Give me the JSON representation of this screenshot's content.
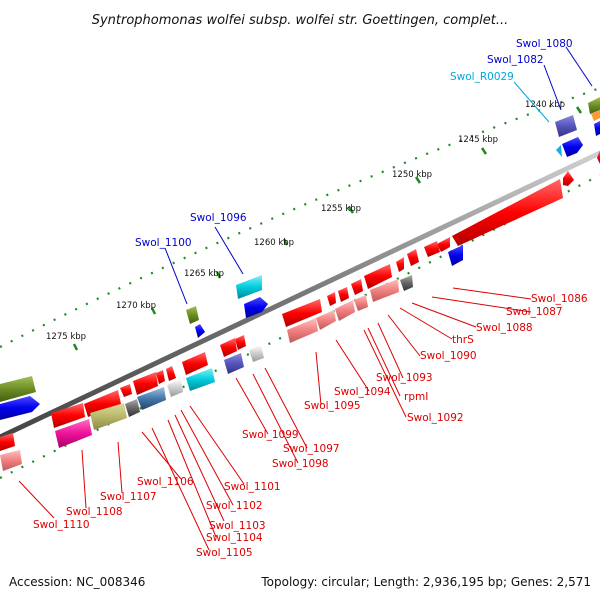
{
  "title": "Syntrophomonas wolfei subsp. wolfei str. Goettingen, complet...",
  "footer": {
    "accession": "Accession: NC_008346",
    "summary": "Topology: circular; Length: 2,936,195 bp; Genes: 2,571"
  },
  "ticks": [
    "1240 kbp",
    "1245 kbp",
    "1250 kbp",
    "1255 kbp",
    "1260 kbp",
    "1265 kbp",
    "1270 kbp",
    "1275 kbp"
  ],
  "colors": {
    "backbone": "#7a7a7a",
    "forward_red": "#ff0000",
    "pink": "#f08080",
    "forward_line": "#0000cc",
    "reverse_line": "#dd0000",
    "rna_line": "#00aadd",
    "dot": "#228822"
  },
  "labels_top": [
    {
      "text": "Swol_1080",
      "color": "#0000cc"
    },
    {
      "text": "Swol_1082",
      "color": "#0000cc"
    },
    {
      "text": "Swol_R0029",
      "color": "#00aadd"
    },
    {
      "text": "Swol_1096",
      "color": "#0000cc"
    },
    {
      "text": "Swol_1100",
      "color": "#0000cc"
    }
  ],
  "labels_bottom": [
    {
      "text": "Swol_1086"
    },
    {
      "text": "Swol_1087"
    },
    {
      "text": "Swol_1088"
    },
    {
      "text": "thrS"
    },
    {
      "text": "Swol_1090"
    },
    {
      "text": "Swol_1093"
    },
    {
      "text": "rpmI"
    },
    {
      "text": "Swol_1094"
    },
    {
      "text": "Swol_1092"
    },
    {
      "text": "Swol_1095"
    },
    {
      "text": "Swol_1099"
    },
    {
      "text": "Swol_1097"
    },
    {
      "text": "Swol_1098"
    },
    {
      "text": "Swol_1101"
    },
    {
      "text": "Swol_1106"
    },
    {
      "text": "Swol_1102"
    },
    {
      "text": "Swol_1107"
    },
    {
      "text": "Swol_1103"
    },
    {
      "text": "Swol_1108"
    },
    {
      "text": "Swol_1104"
    },
    {
      "text": "Swol_1110"
    },
    {
      "text": "Swol_1105"
    }
  ]
}
